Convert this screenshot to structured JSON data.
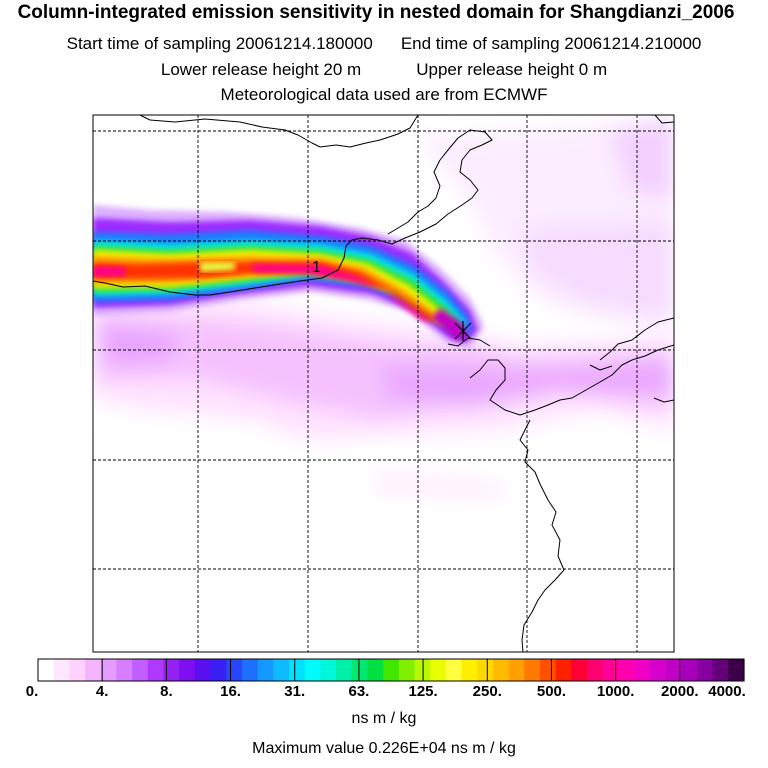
{
  "header": {
    "title": "Column-integrated emission sensitivity in nested domain for Shangdianzi_2006",
    "start_time": "Start time of sampling 20061214.180000",
    "end_time": "End time of sampling 20061214.210000",
    "lower_release": "Lower release height   20 m",
    "upper_release": "Upper release height    0 m",
    "met_source": "Meteorological data used are from ECMWF"
  },
  "map": {
    "plume_label": "1",
    "receptor": "Shangdianzi"
  },
  "colorbar": {
    "tick_labels": [
      "0.",
      "4.",
      "8.",
      "16.",
      "31.",
      "63.",
      "125.",
      "250.",
      "500.",
      "1000.",
      "2000.",
      "4000."
    ],
    "colors": [
      "#ffffff",
      "#ffe8ff",
      "#ffd2ff",
      "#f5b4ff",
      "#e59bff",
      "#d77eff",
      "#c25dff",
      "#b039ff",
      "#9520f2",
      "#7e0ff0",
      "#5a10f0",
      "#3a20f5",
      "#2a45ff",
      "#1d70ff",
      "#1598ff",
      "#0cbcff",
      "#00e0ff",
      "#00fbff",
      "#00f7d8",
      "#00f0a8",
      "#00e870",
      "#00e040",
      "#40e800",
      "#80f000",
      "#b8f800",
      "#e8ff00",
      "#ffff40",
      "#ffee00",
      "#ffd800",
      "#ffbb00",
      "#ff9f00",
      "#ff7a00",
      "#ff5000",
      "#ff2000",
      "#ff0035",
      "#ff0070",
      "#ff0098",
      "#ff00b0",
      "#f000c4",
      "#d800cc",
      "#c000c6",
      "#a800ba",
      "#88009f",
      "#640078",
      "#3c0048"
    ],
    "units": "ns m / kg"
  },
  "footer": {
    "max_value": "Maximum value  0.226E+04 ns m / kg"
  },
  "colors": {
    "frame": "#000000",
    "grid": "#000000",
    "coast": "#000000",
    "background": "#ffffff"
  }
}
